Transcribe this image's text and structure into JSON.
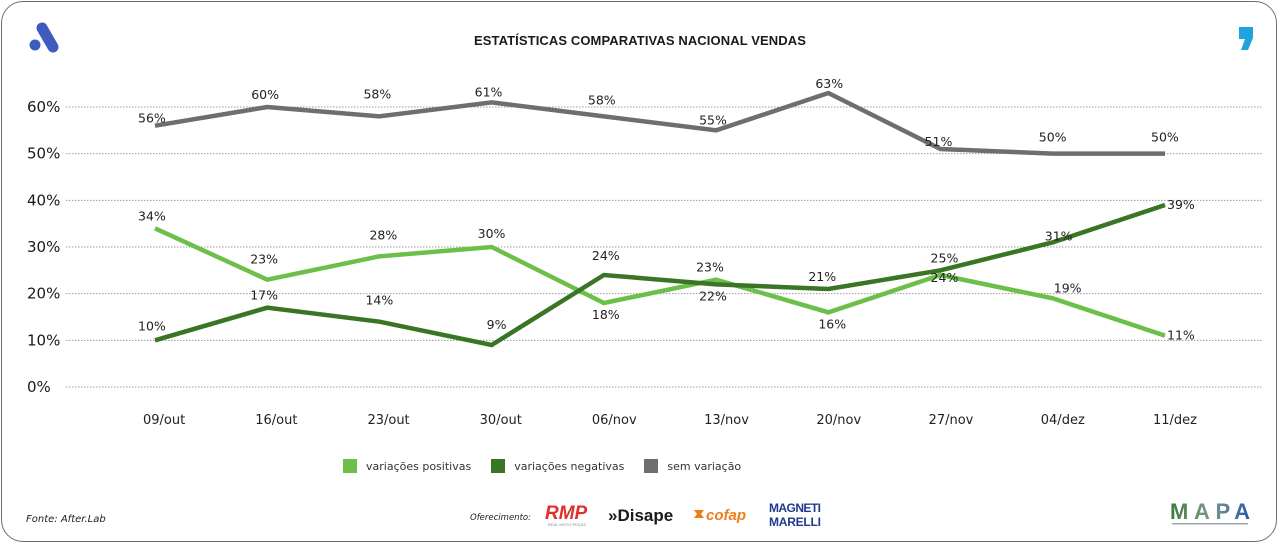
{
  "header": {
    "title": "ESTATÍSTICAS COMPARATIVAS NACIONAL VENDAS",
    "logo_left": "after-lab-a-logo",
    "logo_right": "comma-logo",
    "brand_blue": "#3f5bbf",
    "brand_cyan": "#1fa3dd"
  },
  "chart_data": {
    "type": "line",
    "title": "ESTATÍSTICAS COMPARATIVAS NACIONAL VENDAS",
    "xlabel": "",
    "ylabel": "",
    "categories": [
      "09/out",
      "16/out",
      "23/out",
      "30/out",
      "06/nov",
      "13/nov",
      "20/nov",
      "27/nov",
      "04/dez",
      "11/dez"
    ],
    "y_ticks": [
      "0%",
      "10%",
      "20%",
      "30%",
      "40%",
      "50%",
      "60%"
    ],
    "ylim": [
      0,
      60
    ],
    "grid": "horizontal-dotted",
    "legend_position": "bottom-center",
    "series": [
      {
        "name": "variações positivas",
        "color": "#6cc04a",
        "values": [
          34,
          23,
          28,
          30,
          18,
          23,
          16,
          24,
          19,
          11
        ],
        "labels": [
          "34%",
          "23%",
          "28%",
          "30%",
          "18%",
          "23%",
          "16%",
          "24%",
          "19%",
          "11%"
        ]
      },
      {
        "name": "variações negativas",
        "color": "#3a7425",
        "values": [
          10,
          17,
          14,
          9,
          24,
          22,
          21,
          25,
          31,
          39
        ],
        "labels": [
          "10%",
          "17%",
          "14%",
          "9%",
          "24%",
          "22%",
          "21%",
          "25%",
          "31%",
          "39%"
        ]
      },
      {
        "name": "sem variação",
        "color": "#6e6e6e",
        "values": [
          56,
          60,
          58,
          61,
          58,
          55,
          63,
          51,
          50,
          50
        ],
        "labels": [
          "56%",
          "60%",
          "58%",
          "61%",
          "58%",
          "55%",
          "63%",
          "51%",
          "50%",
          "50%"
        ]
      }
    ]
  },
  "legend": [
    {
      "label": "variações positivas",
      "color": "#6cc04a"
    },
    {
      "label": "variações negativas",
      "color": "#3a7425"
    },
    {
      "label": "sem variação",
      "color": "#6e6e6e"
    }
  ],
  "footer": {
    "source": "Fonte: After.Lab",
    "sponsor_label": "Oferecimento:",
    "sponsors": [
      {
        "name": "RMP",
        "sub": "REAL MOTO PEÇAS",
        "color": "#e0302a"
      },
      {
        "name": "»Disape",
        "color": "#1a1a1a"
      },
      {
        "name": "cofap",
        "color": "#f07d1a"
      },
      {
        "name": "MAGNETI MARELLI",
        "color": "#1f3a8f"
      }
    ],
    "mapa_logo": "MAPA"
  }
}
